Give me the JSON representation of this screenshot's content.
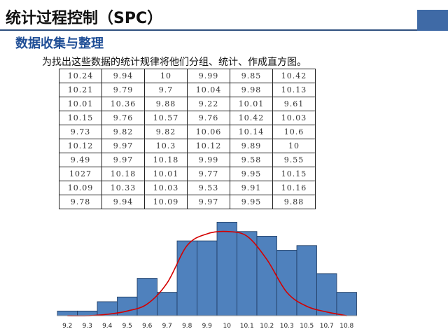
{
  "header": {
    "title": "统计过程控制（SPC）",
    "subtitle": "数据收集与整理",
    "description": "为找出这些数据的统计规律将他们分组、统计、作成直方图。"
  },
  "colors": {
    "bar_fill": "#4f81bd",
    "bar_stroke": "#1e3a5f",
    "curve": "#d40000",
    "accent": "#2e4f7e"
  },
  "data_table": [
    [
      "10.24",
      "9.94",
      "10",
      "9.99",
      "9.85",
      "10.42"
    ],
    [
      "10.21",
      "9.79",
      "9.7",
      "10.04",
      "9.98",
      "10.13"
    ],
    [
      "10.01",
      "10.36",
      "9.88",
      "9.22",
      "10.01",
      "9.61"
    ],
    [
      "10.15",
      "9.76",
      "10.57",
      "9.76",
      "10.42",
      "10.03"
    ],
    [
      "9.73",
      "9.82",
      "9.82",
      "10.06",
      "10.14",
      "10.6"
    ],
    [
      "10.12",
      "9.97",
      "10.3",
      "10.12",
      "9.89",
      "10"
    ],
    [
      "9.49",
      "9.97",
      "10.18",
      "9.99",
      "9.58",
      "9.55"
    ],
    [
      "1027",
      "10.18",
      "10.01",
      "9.77",
      "9.95",
      "10.15"
    ],
    [
      "10.09",
      "10.33",
      "10.03",
      "9.53",
      "9.91",
      "10.16"
    ],
    [
      "9.78",
      "9.94",
      "10.09",
      "9.97",
      "9.95",
      "9.88"
    ]
  ],
  "chart_data": {
    "type": "bar",
    "categories": [
      "9.2",
      "9.3",
      "9.4",
      "9.5",
      "9.6",
      "9.7",
      "9.8",
      "9.9",
      "10",
      "10.1",
      "10.2",
      "10.3",
      "10.5",
      "10.7",
      "10.8"
    ],
    "values": [
      1,
      1,
      3,
      4,
      8,
      5,
      16,
      16,
      20,
      18,
      17,
      14,
      15,
      9,
      5
    ],
    "curve": [
      0,
      0,
      0.3,
      1,
      2.5,
      7,
      15,
      17.5,
      18,
      17,
      12,
      5,
      2,
      0.8,
      0
    ],
    "title": "",
    "xlabel": "",
    "ylabel": "",
    "ylim": [
      0,
      22
    ],
    "grid": false,
    "legend": "none"
  }
}
